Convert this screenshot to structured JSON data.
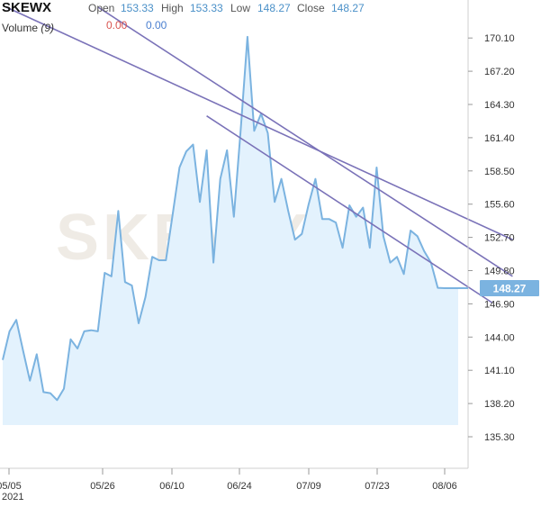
{
  "header": {
    "symbol": "SKEWX",
    "open_label": "Open",
    "open_value": "153.33",
    "high_label": "High",
    "high_value": "153.33",
    "low_label": "Low",
    "low_value": "148.27",
    "close_label": "Close",
    "close_value": "148.27",
    "volume_label": "Volume",
    "volume_period": "(9)",
    "volume_value_1": "0.00",
    "volume_value_2": "0.00"
  },
  "watermark": "SKEWX",
  "colors": {
    "line": "#7bb3e0",
    "area": "#e3f2fd",
    "trend": "#7a72b8",
    "axis_text": "#333333",
    "last_price_bg": "#7bb3e0"
  },
  "chart_data": {
    "type": "area",
    "y_ticks": [
      135.3,
      138.2,
      141.1,
      144.0,
      146.9,
      149.8,
      152.7,
      155.6,
      158.5,
      161.4,
      164.3,
      167.2,
      170.1
    ],
    "x_ticks": [
      "05/05",
      "05/26",
      "06/10",
      "06/24",
      "07/09",
      "07/23",
      "08/06"
    ],
    "x_tick_sublabel": "2021",
    "last_price": "148.27",
    "ylim": [
      133.5,
      172.5
    ],
    "series": [
      {
        "values": [
          142.0,
          144.5,
          145.5,
          142.8,
          140.2,
          142.5,
          139.2,
          139.1,
          138.5,
          139.5,
          143.8,
          143.0,
          144.5,
          144.6,
          144.5,
          149.6,
          149.3,
          155.0,
          148.8,
          148.5,
          145.2,
          147.5,
          151.0,
          150.7,
          150.7,
          154.7,
          158.8,
          160.2,
          160.8,
          155.8,
          160.3,
          150.5,
          157.8,
          160.3,
          154.5,
          162.0,
          170.2,
          162.0,
          163.5,
          161.8,
          155.8,
          157.8,
          155.0,
          152.5,
          153.0,
          155.6,
          157.8,
          154.3,
          154.3,
          154.0,
          151.8,
          155.5,
          154.5,
          155.3,
          151.8,
          158.8,
          152.8,
          150.5,
          151.0,
          149.5,
          153.3,
          152.8,
          151.5,
          150.5,
          148.3,
          148.27,
          148.27,
          148.27
        ]
      }
    ],
    "trend_lines": [
      {
        "x1": 0.5,
        "y1": 172.8,
        "x2": 75,
        "y2": 152.5
      },
      {
        "x1": 14,
        "y1": 172.8,
        "x2": 75,
        "y2": 149.3
      },
      {
        "x1": 30,
        "y1": 163.3,
        "x2": 72,
        "y2": 147.0
      }
    ]
  }
}
